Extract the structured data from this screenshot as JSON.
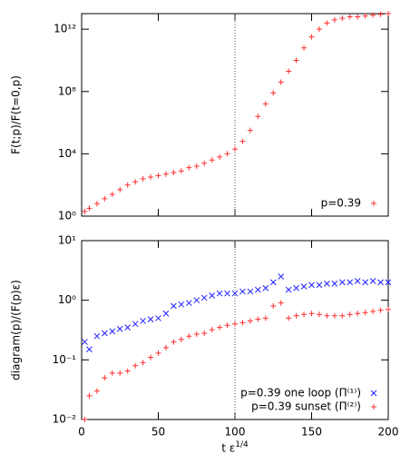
{
  "chart_data": [
    {
      "type": "scatter",
      "ylabel": "F(t;p)/F(t=0,p)",
      "log_y": true,
      "legend": "lower right",
      "vline": 100,
      "xlim": [
        0,
        200
      ],
      "xticks": [
        0,
        50,
        100,
        150,
        200
      ],
      "ylim": [
        1,
        10000000000000
      ],
      "yticks": [
        {
          "value": 1,
          "label": "10⁰"
        },
        {
          "value": 10000,
          "label": "10⁴"
        },
        {
          "value": 100000000,
          "label": "10⁸"
        },
        {
          "value": 1000000000000,
          "label": "10¹²"
        }
      ],
      "x": [
        2,
        5,
        10,
        15,
        20,
        25,
        30,
        35,
        40,
        45,
        50,
        55,
        60,
        65,
        70,
        75,
        80,
        85,
        90,
        95,
        100,
        105,
        110,
        115,
        120,
        125,
        130,
        135,
        140,
        145,
        150,
        155,
        160,
        165,
        170,
        175,
        180,
        185,
        190,
        195,
        200
      ],
      "series": [
        {
          "name": "p=0.39",
          "color": "#ff3030",
          "marker": "plus",
          "values": [
            2,
            3.2,
            6.3,
            13,
            25,
            50,
            100,
            160,
            250,
            320,
            400,
            500,
            630,
            800,
            1300,
            1600,
            2500,
            4000,
            6300,
            10000,
            20000,
            63000,
            320000,
            2500000,
            16000000,
            80000000,
            400000000,
            2000000000,
            10000000000,
            63000000000,
            320000000000,
            1000000000000,
            2500000000000,
            4000000000000,
            5000000000000,
            6300000000000,
            6300000000000,
            7000000000000,
            8000000000000,
            9000000000000,
            10000000000000
          ]
        }
      ]
    },
    {
      "type": "scatter",
      "ylabel": "diagram(p)/(F(p)ε)",
      "xlabel": "t ε^1/4",
      "log_y": true,
      "legend": "lower right",
      "vline": 100,
      "xlim": [
        0,
        200
      ],
      "xticks": [
        0,
        50,
        100,
        150,
        200
      ],
      "ylim": [
        0.01,
        10
      ],
      "yticks": [
        {
          "value": 0.01,
          "label": "10⁻²"
        },
        {
          "value": 0.1,
          "label": "10⁻¹"
        },
        {
          "value": 1,
          "label": "10⁰"
        },
        {
          "value": 10,
          "label": "10¹"
        }
      ],
      "x": [
        2,
        5,
        10,
        15,
        20,
        25,
        30,
        35,
        40,
        45,
        50,
        55,
        60,
        65,
        70,
        75,
        80,
        85,
        90,
        95,
        100,
        105,
        110,
        115,
        120,
        125,
        130,
        135,
        140,
        145,
        150,
        155,
        160,
        165,
        170,
        175,
        180,
        185,
        190,
        195,
        200
      ],
      "series": [
        {
          "name": "p=0.39 one loop (Π⁽¹⁾)",
          "color": "#2020ff",
          "marker": "cross",
          "values": [
            0.2,
            0.15,
            0.25,
            0.28,
            0.3,
            0.33,
            0.35,
            0.4,
            0.45,
            0.48,
            0.5,
            0.6,
            0.8,
            0.85,
            0.9,
            1.0,
            1.1,
            1.2,
            1.3,
            1.3,
            1.3,
            1.4,
            1.4,
            1.5,
            1.6,
            2.0,
            2.5,
            1.5,
            1.6,
            1.7,
            1.8,
            1.8,
            1.9,
            1.9,
            2.0,
            2.0,
            2.1,
            2.0,
            2.1,
            2.0,
            2.0
          ]
        },
        {
          "name": "p=0.39 sunset (Π⁽²⁾)",
          "color": "#ff3030",
          "marker": "plus",
          "values": [
            0.01,
            0.025,
            0.03,
            0.05,
            0.06,
            0.06,
            0.065,
            0.08,
            0.09,
            0.11,
            0.13,
            0.16,
            0.2,
            0.22,
            0.25,
            0.27,
            0.28,
            0.32,
            0.35,
            0.38,
            0.4,
            0.42,
            0.45,
            0.48,
            0.5,
            0.8,
            0.9,
            0.5,
            0.55,
            0.58,
            0.6,
            0.58,
            0.55,
            0.55,
            0.55,
            0.58,
            0.6,
            0.62,
            0.65,
            0.68,
            0.7
          ]
        }
      ]
    }
  ]
}
